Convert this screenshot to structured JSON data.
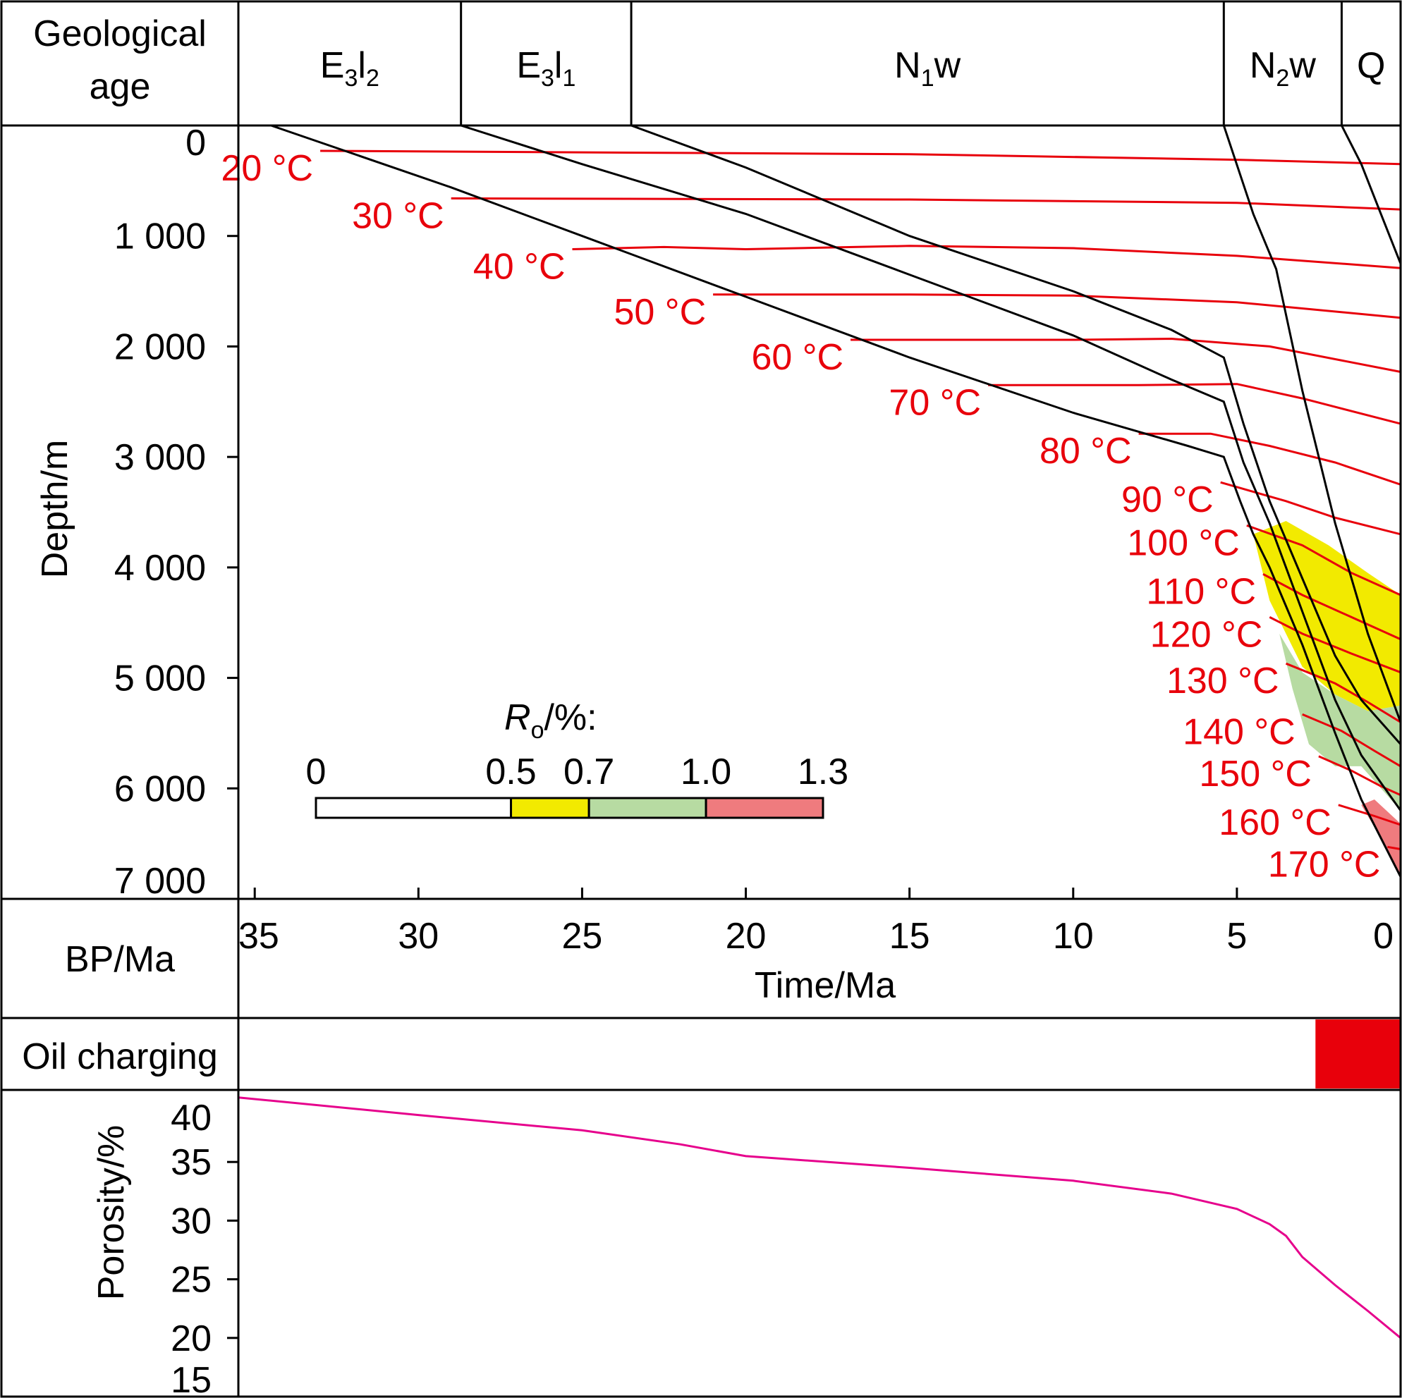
{
  "labels": {
    "geological_age": [
      "Geological",
      "age"
    ],
    "bp": "BP/Ma",
    "oil_charging": "Oil charging",
    "porosity_axis": "Porosity/%",
    "ro_legend_title": "R",
    "ro_legend_sub": "o",
    "ro_legend_unit": "/%:"
  },
  "formations": [
    {
      "base": "E",
      "sub1": "3",
      "mid": "l",
      "sub2": "2",
      "start": 35.5,
      "end": 28.7
    },
    {
      "base": "E",
      "sub1": "3",
      "mid": "l",
      "sub2": "1",
      "start": 28.7,
      "end": 23.5
    },
    {
      "base": "N",
      "sub1": "1",
      "mid": "w",
      "sub2": "",
      "start": 23.5,
      "end": 5.4
    },
    {
      "base": "N",
      "sub1": "2",
      "mid": "w",
      "sub2": "",
      "start": 5.4,
      "end": 1.8
    },
    {
      "base": "Q",
      "sub1": "",
      "mid": "",
      "sub2": "",
      "start": 1.8,
      "end": 0
    }
  ],
  "colors": {
    "isotherm": "#e8000b",
    "burial": "#000000",
    "ro_0_5_0_7": "#f2ea00",
    "ro_0_7_1_0": "#b7dba2",
    "ro_1_0_1_3": "#ef7b7e",
    "oil_charging": "#e8000b",
    "porosity": "#e6008c"
  },
  "chart_data": [
    {
      "type": "line",
      "title": "",
      "xlabel": "Time/Ma",
      "ylabel": "Depth/m",
      "x_ticks": [
        "35",
        "30",
        "25",
        "20",
        "15",
        "10",
        "5",
        "0"
      ],
      "y_ticks": [
        "0",
        "1 000",
        "2 000",
        "3 000",
        "4 000",
        "5 000",
        "6 000",
        "7 000"
      ],
      "xlim": [
        35.5,
        0
      ],
      "ylim": [
        0,
        7000
      ],
      "burial_series": [
        {
          "x": [
            34.5,
            29,
            25,
            20,
            15,
            10,
            6.5,
            5.4,
            4.9,
            4.5,
            4,
            3,
            2,
            1.2,
            0
          ],
          "y": [
            0,
            560,
            1000,
            1550,
            2100,
            2600,
            2900,
            3000,
            3400,
            3700,
            4000,
            4700,
            5500,
            6100,
            6800
          ]
        },
        {
          "x": [
            28.7,
            25,
            20,
            15,
            10,
            7,
            5.4,
            4.8,
            4,
            3,
            2,
            1.2,
            0
          ],
          "y": [
            0,
            350,
            800,
            1350,
            1900,
            2300,
            2500,
            3050,
            3600,
            4400,
            5200,
            5700,
            6200
          ]
        },
        {
          "x": [
            23.5,
            20,
            15,
            10,
            7,
            5.4,
            4.8,
            4,
            3,
            2,
            1.2,
            0
          ],
          "y": [
            0,
            380,
            1000,
            1500,
            1850,
            2100,
            2700,
            3400,
            4100,
            4800,
            5200,
            5600
          ]
        },
        {
          "x": [
            5.4,
            4.5,
            3.8,
            3,
            2,
            1,
            0
          ],
          "y": [
            0,
            800,
            1300,
            2400,
            3600,
            4600,
            5400
          ]
        },
        {
          "x": [
            1.8,
            1.2,
            0.6,
            0
          ],
          "y": [
            0,
            350,
            800,
            1250
          ]
        }
      ],
      "isotherms": [
        {
          "label": "20 °C",
          "x": [
            33,
            15,
            5,
            0
          ],
          "y": [
            230,
            260,
            310,
            350
          ]
        },
        {
          "label": "30 °C",
          "x": [
            29,
            15,
            5,
            0
          ],
          "y": [
            660,
            670,
            700,
            760
          ]
        },
        {
          "label": "40 °C",
          "x": [
            25.3,
            22.5,
            20,
            15,
            10,
            5,
            0
          ],
          "y": [
            1120,
            1100,
            1120,
            1090,
            1110,
            1180,
            1290
          ]
        },
        {
          "label": "50 °C",
          "x": [
            21,
            15,
            10,
            5,
            0
          ],
          "y": [
            1530,
            1530,
            1540,
            1600,
            1740
          ]
        },
        {
          "label": "60 °C",
          "x": [
            16.8,
            10,
            7,
            4,
            0
          ],
          "y": [
            1940,
            1940,
            1930,
            2000,
            2230
          ]
        },
        {
          "label": "70 °C",
          "x": [
            12.6,
            8,
            5,
            3,
            0
          ],
          "y": [
            2350,
            2350,
            2340,
            2470,
            2700
          ]
        },
        {
          "label": "80 °C",
          "x": [
            8,
            5.8,
            4,
            2,
            0
          ],
          "y": [
            2790,
            2790,
            2900,
            3050,
            3250
          ]
        },
        {
          "label": "90 °C",
          "x": [
            5.5,
            3.5,
            2,
            0
          ],
          "y": [
            3230,
            3400,
            3550,
            3700
          ]
        },
        {
          "label": "100 °C",
          "x": [
            4.7,
            3,
            1.5,
            0
          ],
          "y": [
            3620,
            3800,
            4050,
            4250
          ]
        },
        {
          "label": "110 °C",
          "x": [
            4.2,
            3,
            1.5,
            0
          ],
          "y": [
            4060,
            4250,
            4450,
            4650
          ]
        },
        {
          "label": "120 °C",
          "x": [
            4.0,
            3,
            1.5,
            0
          ],
          "y": [
            4450,
            4600,
            4780,
            4950
          ]
        },
        {
          "label": "130 °C",
          "x": [
            3.5,
            2,
            1,
            0
          ],
          "y": [
            4870,
            5050,
            5220,
            5400
          ]
        },
        {
          "label": "140 °C",
          "x": [
            3.0,
            1.8,
            0.8,
            0
          ],
          "y": [
            5330,
            5480,
            5660,
            5800
          ]
        },
        {
          "label": "150 °C",
          "x": [
            2.5,
            1.5,
            0.6,
            0
          ],
          "y": [
            5710,
            5840,
            5980,
            6060
          ]
        },
        {
          "label": "160 °C",
          "x": [
            1.9,
            0.8,
            0
          ],
          "y": [
            6150,
            6250,
            6330
          ]
        },
        {
          "label": "170 °C",
          "x": [
            0.4,
            0
          ],
          "y": [
            6530,
            6550
          ]
        }
      ],
      "ro_windows": [
        {
          "range": "0.5-0.7",
          "color": "#f2ea00",
          "x": [
            4.5,
            3.5,
            2.2,
            1,
            0,
            0,
            1,
            2,
            3,
            4
          ],
          "y": [
            3700,
            3580,
            3800,
            4050,
            4250,
            5250,
            5300,
            5150,
            4900,
            4300
          ]
        },
        {
          "range": "0.7-1.0",
          "color": "#b7dba2",
          "x": [
            3.7,
            3,
            2,
            1,
            0,
            0,
            1.2,
            2,
            2.8,
            3.3
          ],
          "y": [
            4600,
            4950,
            5150,
            5300,
            5250,
            6200,
            5800,
            5800,
            5600,
            5100
          ]
        },
        {
          "range": "1.0-1.3",
          "color": "#ef7b7e",
          "x": [
            1.2,
            0.8,
            0,
            0,
            0.5
          ],
          "y": [
            6150,
            6100,
            6320,
            6800,
            6500
          ]
        }
      ],
      "ro_legend": {
        "ticks": [
          "0",
          "0.5",
          "0.7",
          "1.0",
          "1.3"
        ],
        "bins": [
          {
            "from": 0,
            "to": 0.5,
            "color": "#ffffff"
          },
          {
            "from": 0.5,
            "to": 0.7,
            "color": "#f2ea00"
          },
          {
            "from": 0.7,
            "to": 1.0,
            "color": "#b7dba2"
          },
          {
            "from": 1.0,
            "to": 1.3,
            "color": "#ef7b7e"
          }
        ]
      }
    },
    {
      "type": "bar",
      "title": "",
      "series": [
        {
          "name": "Oil charging",
          "start": 2.6,
          "end": 0
        }
      ],
      "xlim": [
        35.5,
        0
      ]
    },
    {
      "type": "line",
      "title": "",
      "ylabel": "Porosity/%",
      "y_ticks": [
        "40",
        "35",
        "30",
        "25",
        "20",
        "15"
      ],
      "ylim": [
        15,
        40.3
      ],
      "xlim": [
        35.5,
        0
      ],
      "series": [
        {
          "x": [
            35.5,
            30,
            25,
            22,
            20,
            15,
            10,
            7,
            5,
            4,
            3.5,
            3,
            2,
            1,
            0
          ],
          "y": [
            40.5,
            39.0,
            37.7,
            36.5,
            35.5,
            34.5,
            33.4,
            32.3,
            31.0,
            29.7,
            28.7,
            26.9,
            24.5,
            22.3,
            20.0
          ]
        }
      ]
    }
  ]
}
